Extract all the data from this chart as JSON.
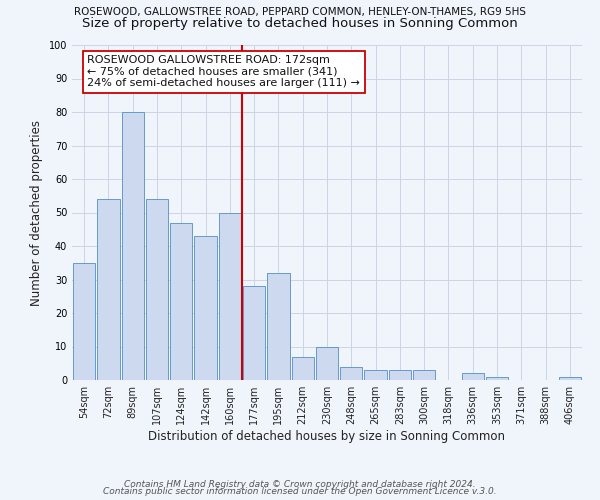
{
  "title_top": "ROSEWOOD, GALLOWSTREE ROAD, PEPPARD COMMON, HENLEY-ON-THAMES, RG9 5HS",
  "title_sub": "Size of property relative to detached houses in Sonning Common",
  "xlabel": "Distribution of detached houses by size in Sonning Common",
  "ylabel": "Number of detached properties",
  "bar_labels": [
    "54sqm",
    "72sqm",
    "89sqm",
    "107sqm",
    "124sqm",
    "142sqm",
    "160sqm",
    "177sqm",
    "195sqm",
    "212sqm",
    "230sqm",
    "248sqm",
    "265sqm",
    "283sqm",
    "300sqm",
    "318sqm",
    "336sqm",
    "353sqm",
    "371sqm",
    "388sqm",
    "406sqm"
  ],
  "bar_values": [
    35,
    54,
    80,
    54,
    47,
    43,
    50,
    28,
    32,
    7,
    10,
    4,
    3,
    3,
    3,
    0,
    2,
    1,
    0,
    0,
    1
  ],
  "bar_color": "#ccd9ee",
  "bar_edge_color": "#6699cc",
  "vline_index": 7,
  "vline_color": "#cc0000",
  "annotation_line1": "ROSEWOOD GALLOWSTREE ROAD: 172sqm",
  "annotation_line2": "← 75% of detached houses are smaller (341)",
  "annotation_line3": "24% of semi-detached houses are larger (111) →",
  "annotation_box_color": "#ffffff",
  "annotation_box_edge": "#cc0000",
  "ylim": [
    0,
    100
  ],
  "yticks": [
    0,
    10,
    20,
    30,
    40,
    50,
    60,
    70,
    80,
    90,
    100
  ],
  "grid_color": "#ccd5e5",
  "background_color": "#f0f4fb",
  "footer_line1": "Contains HM Land Registry data © Crown copyright and database right 2024.",
  "footer_line2": "Contains public sector information licensed under the Open Government Licence v.3.0.",
  "title_fontsize": 7.5,
  "subtitle_fontsize": 9.5,
  "axis_label_fontsize": 8.5,
  "tick_fontsize": 7,
  "annotation_fontsize": 8,
  "footer_fontsize": 6.5
}
